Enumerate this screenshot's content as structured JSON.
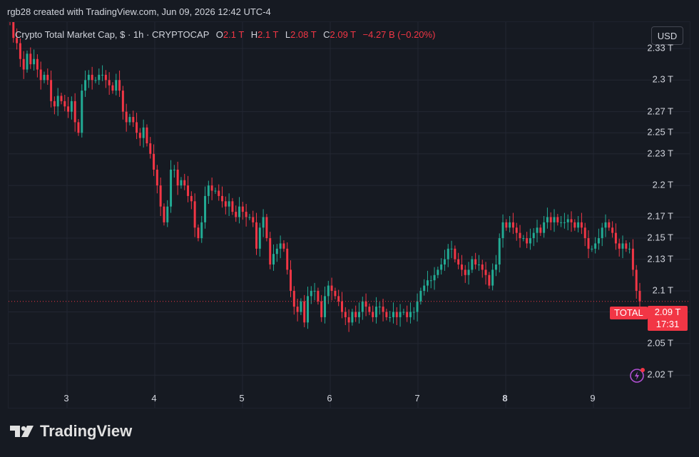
{
  "header": {
    "caption": "rgb28 created with TradingView.com, Jun 09, 2026 12:42 UTC-4"
  },
  "legend": {
    "symbol": "Crypto Total Market Cap, $ · 1h · CRYPTOCAP",
    "o_label": "O",
    "o_value": "2.1 T",
    "h_label": "H",
    "h_value": "2.1 T",
    "l_label": "L",
    "l_value": "2.08 T",
    "c_label": "C",
    "c_value": "2.09 T",
    "change": "−4.27 B (−0.20%)"
  },
  "currency_button": "USD",
  "price_axis": [
    "2.33 T",
    "2.3 T",
    "2.27 T",
    "2.25 T",
    "2.23 T",
    "2.2 T",
    "2.17 T",
    "2.15 T",
    "2.13 T",
    "2.1 T",
    "2.08 T",
    "2.05 T",
    "2.02 T"
  ],
  "time_axis": [
    "3",
    "4",
    "5",
    "6",
    "7",
    "8",
    "9"
  ],
  "current": {
    "ticker": "TOTAL",
    "price": "2.09 T",
    "countdown": "17:31"
  },
  "brand": "TradingView",
  "colors": {
    "up": "#22ab94",
    "down": "#f23645",
    "background": "#161a22",
    "grid": "#232732"
  },
  "chart_data": {
    "type": "candlestick",
    "unit": "T",
    "ylim": [
      2.01,
      2.355
    ],
    "grid": true,
    "x_ticks": [
      "3",
      "4",
      "5",
      "6",
      "7",
      "8",
      "9"
    ],
    "y_ticks": [
      2.33,
      2.3,
      2.27,
      2.25,
      2.23,
      2.2,
      2.17,
      2.15,
      2.13,
      2.1,
      2.08,
      2.05,
      2.02
    ],
    "current_price": 2.09,
    "closes": [
      2.355,
      2.34,
      2.335,
      2.32,
      2.31,
      2.325,
      2.315,
      2.32,
      2.31,
      2.3,
      2.305,
      2.3,
      2.28,
      2.275,
      2.285,
      2.28,
      2.275,
      2.27,
      2.28,
      2.26,
      2.25,
      2.29,
      2.3,
      2.305,
      2.3,
      2.3,
      2.305,
      2.305,
      2.3,
      2.295,
      2.29,
      2.3,
      2.29,
      2.27,
      2.26,
      2.265,
      2.26,
      2.25,
      2.245,
      2.255,
      2.24,
      2.23,
      2.215,
      2.2,
      2.18,
      2.165,
      2.18,
      2.215,
      2.215,
      2.2,
      2.205,
      2.2,
      2.19,
      2.185,
      2.16,
      2.15,
      2.165,
      2.19,
      2.2,
      2.195,
      2.195,
      2.19,
      2.185,
      2.18,
      2.185,
      2.175,
      2.17,
      2.18,
      2.175,
      2.17,
      2.17,
      2.165,
      2.14,
      2.16,
      2.17,
      2.15,
      2.125,
      2.135,
      2.14,
      2.145,
      2.14,
      2.12,
      2.1,
      2.085,
      2.08,
      2.09,
      2.07,
      2.095,
      2.1,
      2.1,
      2.09,
      2.075,
      2.095,
      2.105,
      2.1,
      2.095,
      2.09,
      2.08,
      2.075,
      2.07,
      2.08,
      2.075,
      2.08,
      2.09,
      2.085,
      2.08,
      2.075,
      2.085,
      2.085,
      2.08,
      2.075,
      2.075,
      2.08,
      2.075,
      2.08,
      2.08,
      2.075,
      2.08,
      2.08,
      2.09,
      2.1,
      2.105,
      2.11,
      2.11,
      2.115,
      2.12,
      2.125,
      2.13,
      2.14,
      2.14,
      2.13,
      2.125,
      2.12,
      2.115,
      2.12,
      2.13,
      2.125,
      2.125,
      2.12,
      2.115,
      2.105,
      2.12,
      2.125,
      2.15,
      2.165,
      2.16,
      2.165,
      2.16,
      2.155,
      2.15,
      2.15,
      2.145,
      2.15,
      2.155,
      2.16,
      2.155,
      2.165,
      2.17,
      2.165,
      2.17,
      2.165,
      2.165,
      2.165,
      2.168,
      2.165,
      2.16,
      2.165,
      2.16,
      2.15,
      2.14,
      2.14,
      2.145,
      2.15,
      2.16,
      2.165,
      2.16,
      2.155,
      2.145,
      2.14,
      2.145,
      2.14,
      2.14,
      2.12,
      2.1,
      2.09
    ]
  }
}
